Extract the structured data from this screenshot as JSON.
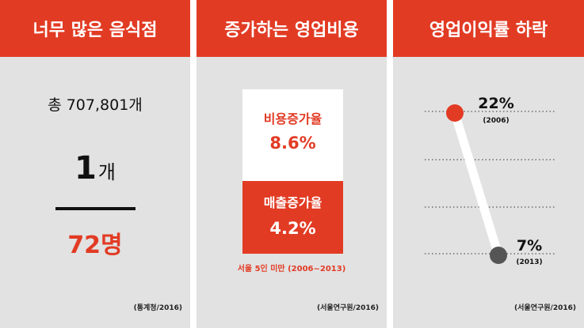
{
  "colors": {
    "accent": "#e23b24",
    "panel_bg": "#e2e2e2",
    "dot_2013": "#555555"
  },
  "panels": [
    {
      "title": "너무 많은 음식점",
      "total": "총 707,801개",
      "count_number": "1",
      "count_unit": "개",
      "per_people": "72명",
      "source": "(통계청/2016)"
    },
    {
      "title": "증가하는 영업비용",
      "cost_label": "비용증가율",
      "cost_value": "8.6%",
      "sales_label": "매출증가율",
      "sales_value": "4.2%",
      "note": "서울 5인 미만 (2006~2013)",
      "source": "(서울연구원/2016)"
    },
    {
      "title": "영업이익률 하락",
      "source": "(서울연구원/2016)"
    }
  ],
  "chart_data": {
    "type": "line",
    "x": [
      "2006",
      "2013"
    ],
    "series": [
      {
        "values": [
          22,
          7
        ]
      }
    ],
    "value_labels": [
      "22%",
      "7%"
    ],
    "year_labels": [
      "(2006)",
      "(2013)"
    ],
    "ylim": [
      5,
      24
    ]
  }
}
